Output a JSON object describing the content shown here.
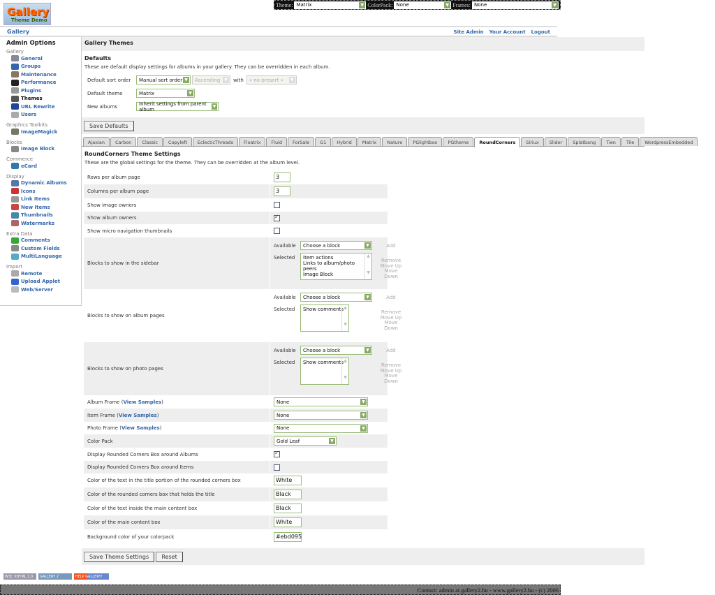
{
  "logo": {
    "text": "Gallery",
    "sub": "Theme Demo"
  },
  "topbar": {
    "theme_label": "Theme:",
    "theme": "Matrix",
    "colorpack_label": "ColorPack:",
    "colorpack": "None",
    "frames_label": "Frames:",
    "frames": "None"
  },
  "header": {
    "title": "Gallery",
    "links": [
      "Site Admin",
      "Your Account",
      "Logout"
    ]
  },
  "sidebar": {
    "title": "Admin Options",
    "groups": [
      {
        "name": "Gallery",
        "items": [
          {
            "label": "General",
            "color": "#889"
          },
          {
            "label": "Groups",
            "color": "#36a"
          },
          {
            "label": "Maintenance",
            "color": "#876"
          },
          {
            "label": "Performance",
            "color": "#222"
          },
          {
            "label": "Plugins",
            "color": "#999"
          },
          {
            "label": "Themes",
            "color": "#555",
            "current": true
          },
          {
            "label": "URL Rewrite",
            "color": "#249"
          },
          {
            "label": "Users",
            "color": "#aaa"
          }
        ]
      },
      {
        "name": "Graphics Toolkits",
        "items": [
          {
            "label": "ImageMagick",
            "color": "#776"
          }
        ]
      },
      {
        "name": "Blocks",
        "items": [
          {
            "label": "Image Block",
            "color": "#888"
          }
        ]
      },
      {
        "name": "Commerce",
        "items": [
          {
            "label": "eCard",
            "color": "#37a"
          }
        ]
      },
      {
        "name": "Display",
        "items": [
          {
            "label": "Dynamic Albums",
            "color": "#57a"
          },
          {
            "label": "Icons",
            "color": "#c33"
          },
          {
            "label": "Link Items",
            "color": "#999"
          },
          {
            "label": "New Items",
            "color": "#c44"
          },
          {
            "label": "Thumbnails",
            "color": "#48a"
          },
          {
            "label": "Watermarks",
            "color": "#a66"
          }
        ]
      },
      {
        "name": "Extra Data",
        "items": [
          {
            "label": "Comments",
            "color": "#3a3"
          },
          {
            "label": "Custom Fields",
            "color": "#888"
          },
          {
            "label": "MultiLanguage",
            "color": "#5ac"
          }
        ]
      },
      {
        "name": "Import",
        "items": [
          {
            "label": "Remote",
            "color": "#aaa"
          },
          {
            "label": "Upload Applet",
            "color": "#36c"
          },
          {
            "label": "Web/Server",
            "color": "#bbb"
          }
        ]
      }
    ]
  },
  "main": {
    "title": "Gallery Themes",
    "defaults_heading": "Defaults",
    "defaults_desc": "These are default display settings for albums in your gallery. They can be overridden in each album.",
    "sort_label": "Default sort order",
    "sort_value": "Manual sort order",
    "sort_dir": "Ascending",
    "with_label": "with",
    "presort": "« no presort »",
    "theme_label": "Default theme",
    "theme_value": "Matrix",
    "new_albums_label": "New albums",
    "new_albums_value": "Inherit settings from parent album",
    "save_defaults": "Save Defaults",
    "tabs": [
      "Ajaxian",
      "Carbon",
      "Classic",
      "Copyleft",
      "EclecticThreads",
      "Floatrix",
      "Fluid",
      "ForSale",
      "G1",
      "Hybrid",
      "Matrix",
      "Nature",
      "PGlightbox",
      "PGtheme",
      "RoundCorners",
      "Siriux",
      "Slider",
      "Splatbang",
      "Tien",
      "Tile",
      "WordpressEmbedded"
    ],
    "active_tab": "RoundCorners",
    "settings_heading": "RoundCorners Theme Settings",
    "settings_desc": "These are the global settings for the theme. They can be overridden at the album level.",
    "available_label": "Available",
    "selected_label": "Selected",
    "choose_block": "Choose a block",
    "add": "Add",
    "remove": "Remove",
    "move_up": "Move Up",
    "move_down": "Move Down",
    "view_samples": "View Samples",
    "rows": {
      "rows_label": "Rows per album page",
      "rows_value": "3",
      "cols_label": "Columns per album page",
      "cols_value": "3",
      "owners_label": "Show image owners",
      "owners": false,
      "album_owners_label": "Show album owners",
      "album_owners": true,
      "micro_label": "Show micro navigation thumbnails",
      "micro": false,
      "sidebar_blocks_label": "Blocks to show in the sidebar",
      "sidebar_blocks": [
        "Item actions",
        "Links to album/photo peers",
        "Image Block"
      ],
      "album_blocks_label": "Blocks to show on album pages",
      "album_blocks": [
        "Show comments"
      ],
      "photo_blocks_label": "Blocks to show on photo pages",
      "photo_blocks": [
        "Show comments"
      ],
      "album_frame_label": "Album Frame",
      "album_frame": "None",
      "item_frame_label": "Item Frame",
      "item_frame": "None",
      "photo_frame_label": "Photo Frame",
      "photo_frame": "None",
      "colorpack_label": "Color Pack",
      "colorpack": "Gold Leaf",
      "rc_albums_label": "Display Rounded Corners Box around Albums",
      "rc_albums": true,
      "rc_items_label": "Display Rounded Corners Box around Items",
      "rc_items": false,
      "title_text_label": "Color of the text in the title portion of the rounded corners box",
      "title_text": "White",
      "box_title_label": "Color of the rounded corners box that holds the title",
      "box_title": "Black",
      "inside_text_label": "Color of the text inside the main content box",
      "inside_text": "Black",
      "main_box_label": "Color of the main content box",
      "main_box": "White",
      "bg_label": "Background color of your colorpack",
      "bg": "#ebd095"
    },
    "save_settings": "Save Theme Settings",
    "reset": "Reset"
  },
  "badges": [
    "W3C XHTML 1.0",
    "GALLERY 2",
    "HELP GALLERY!"
  ],
  "footer": "Contact: admin at gallery2.hu - www.gallery2.hu - (c) 2006"
}
